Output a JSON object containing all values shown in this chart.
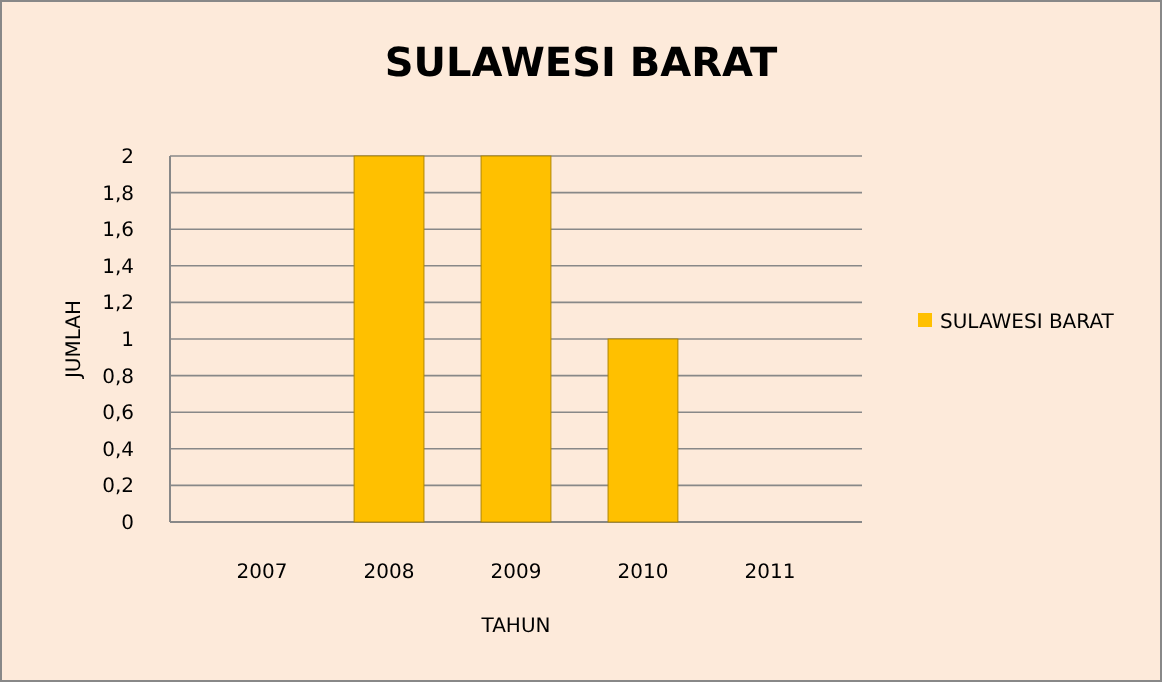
{
  "chart_data": {
    "type": "bar",
    "title": "SULAWESI BARAT",
    "xlabel": "TAHUN",
    "ylabel": "JUMLAH",
    "categories": [
      "2007",
      "2008",
      "2009",
      "2010",
      "2011"
    ],
    "series": [
      {
        "name": "SULAWESI BARAT",
        "color": "#ffc000",
        "values": [
          0,
          2,
          2,
          1,
          0
        ]
      }
    ],
    "ylim": [
      0,
      2
    ],
    "yticks": [
      0,
      {
        "value": 0.2,
        "label": "0,2"
      },
      {
        "value": 0.4,
        "label": "0,4"
      },
      {
        "value": 0.6,
        "label": "0,6"
      },
      {
        "value": 0.8,
        "label": "0,8"
      },
      1,
      {
        "value": 1.2,
        "label": "1,2"
      },
      {
        "value": 1.4,
        "label": "1,4"
      },
      {
        "value": 1.6,
        "label": "1,6"
      },
      {
        "value": 1.8,
        "label": "1,8"
      },
      2
    ],
    "grid": "y",
    "legend": "right"
  }
}
